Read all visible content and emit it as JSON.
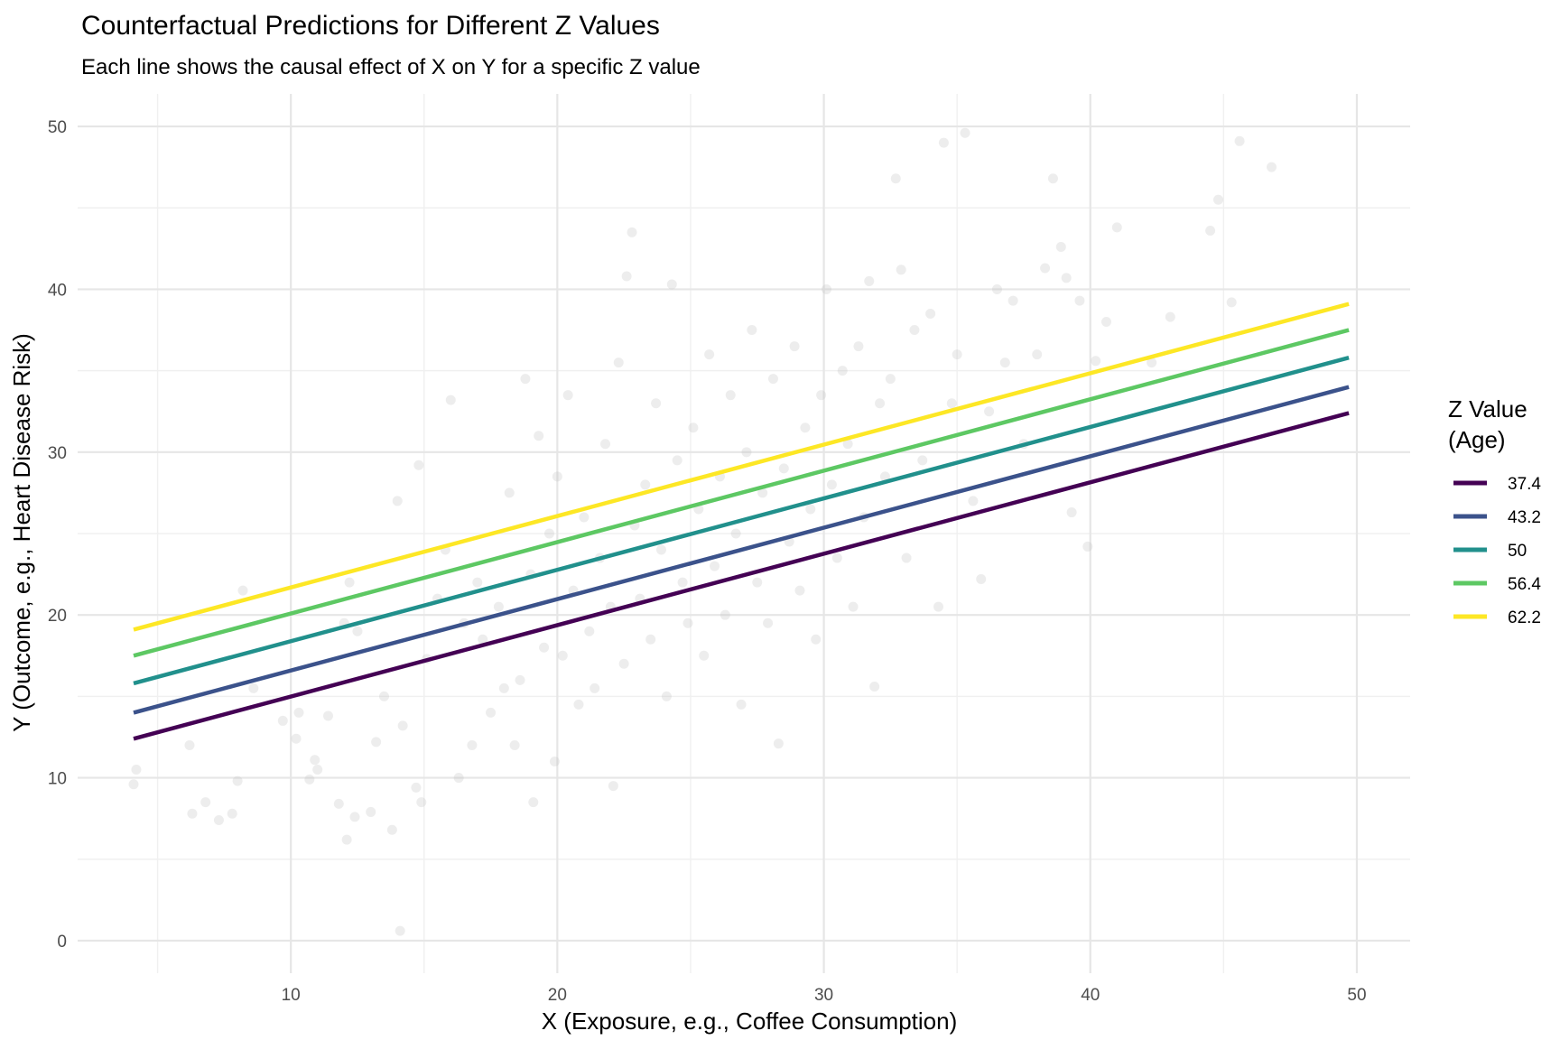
{
  "chart_data": {
    "type": "line",
    "title": "Counterfactual Predictions for Different Z Values",
    "subtitle": "Each line shows the causal effect of X on Y for a specific Z value",
    "xlabel": "X (Exposure, e.g., Coffee Consumption)",
    "ylabel": "Y (Outcome, e.g., Heart Disease Risk)",
    "xlim": [
      2,
      52
    ],
    "ylim": [
      -2,
      52
    ],
    "x_ticks": [
      10,
      20,
      30,
      40,
      50
    ],
    "y_ticks": [
      0,
      10,
      20,
      30,
      40,
      50
    ],
    "grid": true,
    "legend": {
      "title_line1": "Z Value",
      "title_line2": "(Age)",
      "position": "right"
    },
    "series": [
      {
        "name": "37.4",
        "color": "#440154",
        "x": [
          4.1,
          49.7
        ],
        "y": [
          12.4,
          32.4
        ]
      },
      {
        "name": "43.2",
        "color": "#3B528B",
        "x": [
          4.1,
          49.7
        ],
        "y": [
          14.0,
          34.0
        ]
      },
      {
        "name": "50",
        "color": "#21908C",
        "x": [
          4.1,
          49.7
        ],
        "y": [
          15.8,
          35.8
        ]
      },
      {
        "name": "56.4",
        "color": "#5DC863",
        "x": [
          4.1,
          49.7
        ],
        "y": [
          17.5,
          37.5
        ]
      },
      {
        "name": "62.2",
        "color": "#FDE725",
        "x": [
          4.1,
          49.7
        ],
        "y": [
          19.1,
          39.1
        ]
      }
    ],
    "background_points": {
      "color": "#bebebe",
      "points": [
        [
          4.2,
          10.5
        ],
        [
          4.1,
          9.6
        ],
        [
          6.2,
          12.0
        ],
        [
          6.3,
          7.8
        ],
        [
          6.8,
          8.5
        ],
        [
          7.3,
          7.4
        ],
        [
          7.8,
          7.8
        ],
        [
          8.0,
          9.8
        ],
        [
          8.2,
          21.5
        ],
        [
          8.6,
          15.5
        ],
        [
          9.7,
          13.5
        ],
        [
          10.2,
          12.4
        ],
        [
          10.3,
          14.0
        ],
        [
          10.7,
          9.9
        ],
        [
          10.9,
          11.1
        ],
        [
          11.0,
          10.5
        ],
        [
          11.4,
          13.8
        ],
        [
          11.8,
          8.4
        ],
        [
          12.1,
          6.2
        ],
        [
          12.4,
          7.6
        ],
        [
          12.0,
          19.5
        ],
        [
          12.2,
          22.0
        ],
        [
          12.5,
          19.0
        ],
        [
          13.0,
          7.9
        ],
        [
          13.2,
          12.2
        ],
        [
          13.5,
          15.0
        ],
        [
          13.8,
          6.8
        ],
        [
          14.0,
          27.0
        ],
        [
          14.1,
          0.6
        ],
        [
          14.2,
          13.2
        ],
        [
          14.7,
          9.4
        ],
        [
          14.9,
          8.5
        ],
        [
          14.8,
          29.2
        ],
        [
          15.1,
          17.3
        ],
        [
          15.5,
          21.0
        ],
        [
          15.8,
          24.0
        ],
        [
          16.0,
          33.2
        ],
        [
          16.3,
          10.0
        ],
        [
          16.5,
          19.5
        ],
        [
          16.8,
          12.0
        ],
        [
          17.0,
          22.0
        ],
        [
          17.2,
          18.5
        ],
        [
          17.5,
          14.0
        ],
        [
          17.8,
          20.5
        ],
        [
          18.0,
          15.5
        ],
        [
          18.2,
          27.5
        ],
        [
          18.4,
          12.0
        ],
        [
          18.6,
          16.0
        ],
        [
          18.8,
          34.5
        ],
        [
          19.0,
          22.5
        ],
        [
          19.1,
          8.5
        ],
        [
          19.3,
          31.0
        ],
        [
          19.5,
          18.0
        ],
        [
          19.7,
          25.0
        ],
        [
          19.9,
          11.0
        ],
        [
          20.0,
          28.5
        ],
        [
          20.2,
          17.5
        ],
        [
          20.4,
          33.5
        ],
        [
          20.6,
          21.5
        ],
        [
          20.8,
          14.5
        ],
        [
          21.0,
          26.0
        ],
        [
          21.2,
          19.0
        ],
        [
          21.4,
          15.5
        ],
        [
          21.6,
          23.5
        ],
        [
          21.8,
          30.5
        ],
        [
          22.0,
          20.5
        ],
        [
          22.1,
          9.5
        ],
        [
          22.3,
          35.5
        ],
        [
          22.5,
          17.0
        ],
        [
          22.6,
          40.8
        ],
        [
          22.8,
          43.5
        ],
        [
          22.9,
          25.5
        ],
        [
          23.1,
          21.0
        ],
        [
          23.3,
          28.0
        ],
        [
          23.5,
          18.5
        ],
        [
          23.7,
          33.0
        ],
        [
          23.9,
          24.0
        ],
        [
          24.1,
          15.0
        ],
        [
          24.3,
          40.3
        ],
        [
          24.5,
          29.5
        ],
        [
          24.7,
          22.0
        ],
        [
          24.9,
          19.5
        ],
        [
          25.1,
          31.5
        ],
        [
          25.3,
          26.5
        ],
        [
          25.5,
          17.5
        ],
        [
          25.7,
          36.0
        ],
        [
          25.9,
          23.0
        ],
        [
          26.1,
          28.5
        ],
        [
          26.3,
          20.0
        ],
        [
          26.5,
          33.5
        ],
        [
          26.7,
          25.0
        ],
        [
          26.9,
          14.5
        ],
        [
          27.1,
          30.0
        ],
        [
          27.3,
          37.5
        ],
        [
          27.5,
          22.0
        ],
        [
          27.7,
          27.5
        ],
        [
          27.9,
          19.5
        ],
        [
          28.1,
          34.5
        ],
        [
          28.3,
          12.1
        ],
        [
          28.5,
          29.0
        ],
        [
          28.7,
          24.5
        ],
        [
          28.9,
          36.5
        ],
        [
          29.1,
          21.5
        ],
        [
          29.3,
          31.5
        ],
        [
          29.5,
          26.5
        ],
        [
          29.7,
          18.5
        ],
        [
          29.9,
          33.5
        ],
        [
          30.1,
          40.0
        ],
        [
          30.3,
          28.0
        ],
        [
          30.5,
          23.5
        ],
        [
          30.7,
          35.0
        ],
        [
          30.9,
          30.5
        ],
        [
          31.1,
          20.5
        ],
        [
          31.3,
          36.5
        ],
        [
          31.5,
          26.0
        ],
        [
          31.7,
          40.5
        ],
        [
          31.9,
          15.6
        ],
        [
          32.1,
          33.0
        ],
        [
          32.3,
          28.5
        ],
        [
          32.5,
          34.5
        ],
        [
          32.7,
          46.8
        ],
        [
          32.9,
          41.2
        ],
        [
          33.1,
          23.5
        ],
        [
          33.4,
          37.5
        ],
        [
          33.7,
          29.5
        ],
        [
          34.0,
          38.5
        ],
        [
          34.3,
          20.5
        ],
        [
          34.5,
          49.0
        ],
        [
          34.8,
          33.0
        ],
        [
          35.0,
          36.0
        ],
        [
          35.3,
          49.6
        ],
        [
          35.6,
          27.0
        ],
        [
          35.9,
          22.2
        ],
        [
          36.2,
          32.5
        ],
        [
          36.5,
          40.0
        ],
        [
          36.8,
          35.5
        ],
        [
          37.1,
          39.3
        ],
        [
          37.5,
          30.5
        ],
        [
          38.0,
          36.0
        ],
        [
          38.3,
          41.3
        ],
        [
          38.6,
          46.8
        ],
        [
          38.9,
          42.6
        ],
        [
          39.1,
          40.7
        ],
        [
          39.3,
          26.3
        ],
        [
          39.6,
          39.3
        ],
        [
          39.9,
          24.2
        ],
        [
          40.2,
          35.6
        ],
        [
          40.6,
          38.0
        ],
        [
          41.0,
          43.8
        ],
        [
          42.3,
          35.5
        ],
        [
          43.0,
          38.3
        ],
        [
          44.5,
          43.6
        ],
        [
          44.8,
          45.5
        ],
        [
          45.3,
          39.2
        ],
        [
          45.6,
          49.1
        ],
        [
          46.8,
          47.5
        ]
      ]
    }
  }
}
